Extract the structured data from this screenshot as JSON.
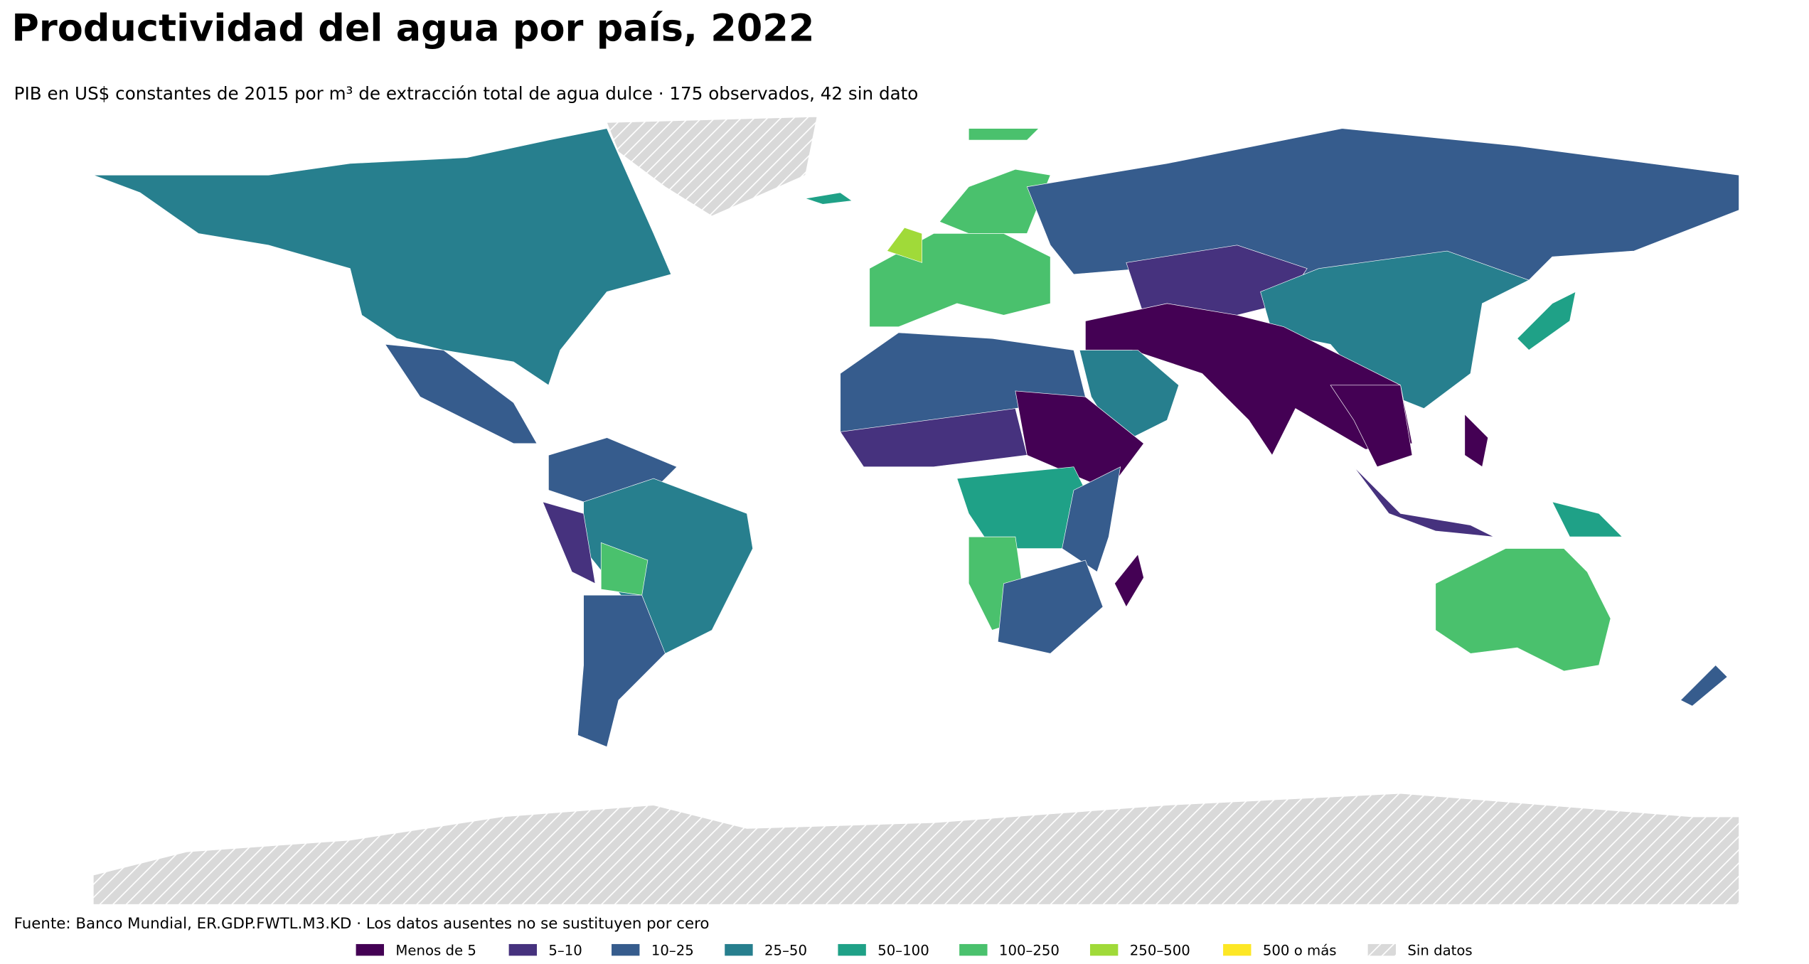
{
  "title": "Productividad del agua por país, 2022",
  "subtitle": "PIB en US$ constantes de 2015 por m³ de extracción total de agua dulce · 175 observados, 42 sin dato",
  "source": "Fuente: Banco Mundial, ER.GDP.FWTL.M3.KD · Los datos ausentes no se sustituyen por cero",
  "legend": [
    {
      "label": "Menos de 5",
      "color": "#440154"
    },
    {
      "label": "5–10",
      "color": "#46327e"
    },
    {
      "label": "10–25",
      "color": "#365c8d"
    },
    {
      "label": "25–50",
      "color": "#277f8e"
    },
    {
      "label": "50–100",
      "color": "#1fa187"
    },
    {
      "label": "100–250",
      "color": "#4ac16d"
    },
    {
      "label": "250–500",
      "color": "#a0da39"
    },
    {
      "label": "500 o más",
      "color": "#fde725"
    },
    {
      "label": "Sin datos",
      "color": "#d9d9d9",
      "pattern": "hatch"
    }
  ]
}
